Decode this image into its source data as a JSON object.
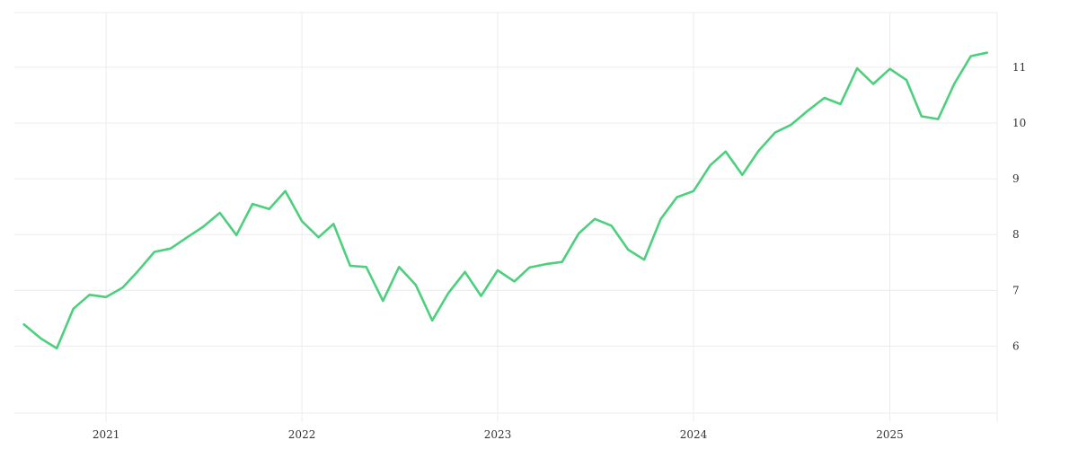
{
  "colors": {
    "line": "#4cd07d",
    "grid": "#ececec",
    "text": "#333333"
  },
  "chart_data": {
    "type": "line",
    "title": "",
    "xlabel": "",
    "ylabel": "",
    "grid": true,
    "legend": "none",
    "y_axis_side": "right",
    "xlim": [
      "2020-07-14",
      "2025-07-20"
    ],
    "ylim": [
      4.8,
      11.98
    ],
    "x_ticks": [
      "2021",
      "2022",
      "2023",
      "2024",
      "2025"
    ],
    "y_ticks": [
      "6",
      "7",
      "8",
      "9",
      "10",
      "11"
    ],
    "series": [
      {
        "x": [
          "2020-08",
          "2020-09",
          "2020-10",
          "2020-11",
          "2020-12",
          "2021-01",
          "2021-02",
          "2021-03",
          "2021-04",
          "2021-05",
          "2021-06",
          "2021-07",
          "2021-08",
          "2021-09",
          "2021-10",
          "2021-11",
          "2021-12",
          "2022-01",
          "2022-02",
          "2022-03",
          "2022-04",
          "2022-05",
          "2022-06",
          "2022-07",
          "2022-08",
          "2022-09",
          "2022-10",
          "2022-11",
          "2022-12",
          "2023-01",
          "2023-02",
          "2023-03",
          "2023-04",
          "2023-05",
          "2023-06",
          "2023-07",
          "2023-08",
          "2023-09",
          "2023-10",
          "2023-11",
          "2023-12",
          "2024-01",
          "2024-02",
          "2024-03",
          "2024-04",
          "2024-05",
          "2024-06",
          "2024-07",
          "2024-08",
          "2024-09",
          "2024-10",
          "2024-11",
          "2024-12",
          "2025-01",
          "2025-02",
          "2025-03",
          "2025-04",
          "2025-05",
          "2025-06",
          "2025-07"
        ],
        "y": [
          6.39,
          6.14,
          5.96,
          6.67,
          6.92,
          6.88,
          7.05,
          7.34,
          7.69,
          7.75,
          7.95,
          8.14,
          8.39,
          7.99,
          8.55,
          8.46,
          8.78,
          8.24,
          7.95,
          8.19,
          7.44,
          7.42,
          6.81,
          7.42,
          7.1,
          6.46,
          6.95,
          7.33,
          6.9,
          7.36,
          7.16,
          7.41,
          7.47,
          7.51,
          8.02,
          8.28,
          8.16,
          7.73,
          7.55,
          8.28,
          8.67,
          8.78,
          9.24,
          9.49,
          9.07,
          9.5,
          9.83,
          9.97,
          10.22,
          10.45,
          10.34,
          10.98,
          10.7,
          10.97,
          10.77,
          10.12,
          10.07,
          10.7,
          11.2,
          11.26
        ]
      }
    ]
  }
}
